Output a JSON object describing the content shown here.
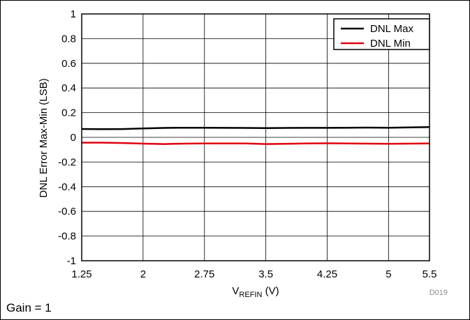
{
  "chart_data": {
    "type": "line",
    "xlabel_main": "V",
    "xlabel_sub": "REFIN",
    "xlabel_unit": " (V)",
    "ylabel": "DNL Error Max-Min (LSB)",
    "xlim": [
      1.25,
      5.5
    ],
    "ylim": [
      -1,
      1
    ],
    "xticks": [
      1.25,
      2,
      2.75,
      3.5,
      4.25,
      5,
      5.5
    ],
    "xtick_labels": [
      "1.25",
      "2",
      "2.75",
      "3.5",
      "4.25",
      "5",
      "5.5"
    ],
    "yticks": [
      -1,
      -0.8,
      -0.6,
      -0.4,
      -0.2,
      0,
      0.2,
      0.4,
      0.6,
      0.8,
      1
    ],
    "ytick_labels": [
      "-1",
      "-0.8",
      "-0.6",
      "-0.4",
      "-0.2",
      "0",
      "0.2",
      "0.4",
      "0.6",
      "0.8",
      "1"
    ],
    "grid": true,
    "legend_position": "top-right",
    "series": [
      {
        "name": "DNL Max",
        "color": "#000000",
        "x": [
          1.25,
          1.5,
          1.75,
          2.0,
          2.25,
          2.5,
          2.75,
          3.0,
          3.25,
          3.5,
          3.75,
          4.0,
          4.25,
          4.5,
          4.75,
          5.0,
          5.25,
          5.5
        ],
        "y": [
          0.068,
          0.066,
          0.067,
          0.072,
          0.076,
          0.078,
          0.078,
          0.077,
          0.076,
          0.075,
          0.076,
          0.077,
          0.077,
          0.078,
          0.079,
          0.078,
          0.08,
          0.083
        ]
      },
      {
        "name": "DNL Min",
        "color": "#e0000f",
        "x": [
          1.25,
          1.5,
          1.75,
          2.0,
          2.25,
          2.5,
          2.75,
          3.0,
          3.25,
          3.5,
          3.75,
          4.0,
          4.25,
          4.5,
          4.75,
          5.0,
          5.25,
          5.5
        ],
        "y": [
          -0.043,
          -0.043,
          -0.046,
          -0.051,
          -0.054,
          -0.051,
          -0.049,
          -0.05,
          -0.05,
          -0.054,
          -0.052,
          -0.049,
          -0.048,
          -0.05,
          -0.051,
          -0.052,
          -0.051,
          -0.049
        ]
      }
    ]
  },
  "chart_code": "D019",
  "footer_note": "Gain = 1"
}
